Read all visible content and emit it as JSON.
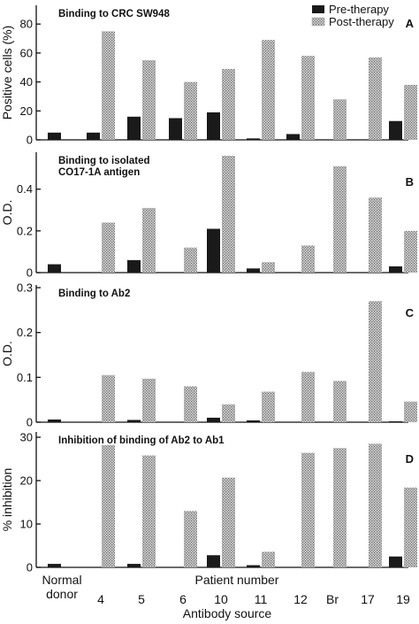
{
  "legend": {
    "pre": "Pre-therapy",
    "post": "Post-therapy",
    "placement": "top-right"
  },
  "xaxis": {
    "label": "Antibody source",
    "categories": [
      "Normal\ndonor",
      "4",
      "5",
      "6",
      "10",
      "11",
      "12",
      "Br",
      "17",
      "19"
    ],
    "group_label": "Patient number"
  },
  "colors": {
    "pre": "#1a1a1a",
    "post": "#b5b5b5"
  },
  "chart_data": [
    {
      "type": "bar",
      "panel": "A",
      "title": "Binding to CRC SW948",
      "ylabel": "Positive cells (%)",
      "ylim": [
        0,
        85
      ],
      "yticks": [
        0,
        20,
        40,
        60,
        80
      ],
      "categories": [
        "Normal donor",
        "4",
        "5",
        "6",
        "10",
        "11",
        "12",
        "Br",
        "17",
        "19"
      ],
      "series": [
        {
          "name": "Pre-therapy",
          "values": [
            5,
            5,
            16,
            15,
            19,
            1,
            4,
            null,
            null,
            13
          ]
        },
        {
          "name": "Post-therapy",
          "values": [
            null,
            75,
            55,
            40,
            49,
            69,
            58,
            28,
            57,
            38
          ]
        }
      ]
    },
    {
      "type": "bar",
      "panel": "B",
      "title": "Binding to isolated\nCO17-1A antigen",
      "ylabel": "O.D.",
      "ylim": [
        0,
        0.56
      ],
      "yticks": [
        0,
        0.2,
        0.4
      ],
      "categories": [
        "Normal donor",
        "4",
        "5",
        "6",
        "10",
        "11",
        "12",
        "Br",
        "17",
        "19"
      ],
      "series": [
        {
          "name": "Pre-therapy",
          "values": [
            0.04,
            null,
            0.06,
            null,
            0.21,
            0.02,
            null,
            null,
            null,
            0.03
          ]
        },
        {
          "name": "Post-therapy",
          "values": [
            null,
            0.24,
            0.31,
            0.12,
            0.56,
            0.05,
            0.13,
            0.51,
            0.36,
            0.2
          ]
        }
      ]
    },
    {
      "type": "bar",
      "panel": "C",
      "title": "Binding to Ab2",
      "ylabel": "O.D.",
      "ylim": [
        0,
        0.3
      ],
      "yticks": [
        0,
        0.1,
        0.2,
        0.3
      ],
      "categories": [
        "Normal donor",
        "4",
        "5",
        "6",
        "10",
        "11",
        "12",
        "Br",
        "17",
        "19"
      ],
      "series": [
        {
          "name": "Pre-therapy",
          "values": [
            0.006,
            null,
            0.005,
            null,
            0.01,
            0.004,
            null,
            null,
            null,
            0.002
          ]
        },
        {
          "name": "Post-therapy",
          "values": [
            null,
            0.105,
            0.097,
            0.08,
            0.04,
            0.068,
            0.112,
            0.092,
            0.27,
            0.046
          ]
        }
      ]
    },
    {
      "type": "bar",
      "panel": "D",
      "title": "Inhibition of binding of Ab2 to Ab1",
      "ylabel": "% inhibition",
      "ylim": [
        0,
        30
      ],
      "yticks": [
        0,
        10,
        20,
        30
      ],
      "categories": [
        "Normal donor",
        "4",
        "5",
        "6",
        "10",
        "11",
        "12",
        "Br",
        "17",
        "19"
      ],
      "series": [
        {
          "name": "Pre-therapy",
          "values": [
            0.8,
            null,
            0.8,
            null,
            2.8,
            0.5,
            null,
            null,
            null,
            2.5
          ]
        },
        {
          "name": "Post-therapy",
          "values": [
            null,
            28.2,
            25.8,
            13,
            20.7,
            3.6,
            26.4,
            27.5,
            28.5,
            18.4
          ]
        }
      ]
    }
  ]
}
